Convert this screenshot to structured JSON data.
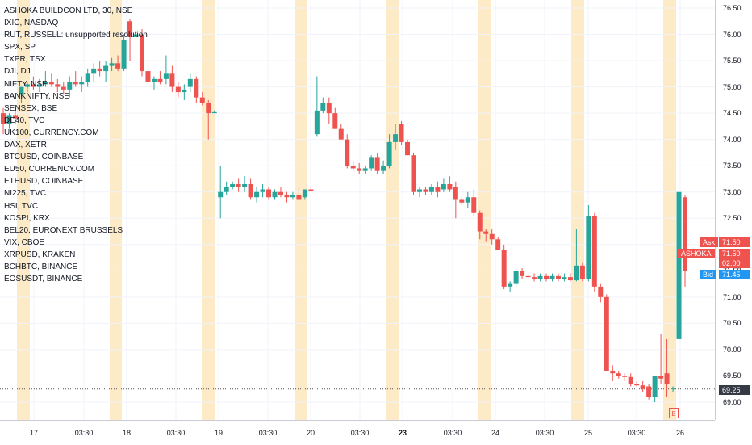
{
  "chart_data": {
    "type": "candlestick",
    "title": "ASHOKA BUILDCON LTD, 30, NSE",
    "ylim": [
      68.8,
      76.75
    ],
    "yticks": [
      69.0,
      69.5,
      70.0,
      70.5,
      71.0,
      71.5,
      72.0,
      72.5,
      73.0,
      73.5,
      74.0,
      74.5,
      75.0,
      75.5,
      76.0,
      76.5
    ],
    "x_ticks": [
      "17",
      "03:30",
      "18",
      "03:30",
      "19",
      "03:30",
      "20",
      "03:30",
      "23",
      "03:30",
      "24",
      "03:30",
      "25",
      "03:30",
      "26"
    ],
    "x_tick_bold": [
      "23"
    ],
    "comparison_symbols": [
      "IXIC, NASDAQ",
      "RUT, RUSSELL: unsupported resolution",
      "SPX, SP",
      "TXPR, TSX",
      "DJI, DJ",
      "NIFTY, NSE",
      "BANKNIFTY, NSE",
      "SENSEX, BSE",
      "DE40, TVC",
      "UK100, CURRENCY.COM",
      "DAX, XETR",
      "BTCUSD, COINBASE",
      "EU50, CURRENCY.COM",
      "ETHUSD, COINBASE",
      "NI225, TVC",
      "HSI, TVC",
      "KOSPI, KRX",
      "BEL20, EURONEXT BRUSSELS",
      "VIX, CBOE",
      "XRPUSD, KRAKEN",
      "BCHBTC, BINANCE",
      "EOSUSDT, BINANCE"
    ],
    "candles": [
      [
        74.5,
        74.6,
        74.1,
        74.3
      ],
      [
        74.3,
        74.5,
        74.2,
        74.45
      ],
      [
        74.45,
        74.6,
        74.3,
        74.4
      ],
      [
        74.85,
        75.0,
        74.7,
        75.0
      ],
      [
        75.0,
        75.1,
        74.9,
        75.05
      ],
      [
        75.05,
        75.2,
        74.95,
        75.0
      ],
      [
        75.0,
        75.15,
        74.9,
        75.05
      ],
      [
        75.05,
        75.3,
        75.0,
        75.1
      ],
      [
        75.1,
        75.25,
        75.0,
        75.05
      ],
      [
        75.05,
        75.15,
        74.9,
        75.0
      ],
      [
        75.0,
        75.1,
        74.85,
        74.95
      ],
      [
        74.95,
        75.2,
        74.8,
        75.1
      ],
      [
        75.1,
        75.3,
        75.0,
        75.05
      ],
      [
        75.05,
        75.2,
        74.9,
        75.1
      ],
      [
        75.1,
        75.35,
        75.0,
        75.25
      ],
      [
        75.25,
        75.45,
        75.1,
        75.35
      ],
      [
        75.35,
        75.5,
        75.2,
        75.3
      ],
      [
        75.3,
        75.5,
        75.1,
        75.4
      ],
      [
        75.4,
        75.55,
        75.3,
        75.45
      ],
      [
        75.45,
        75.6,
        75.3,
        75.35
      ],
      [
        75.35,
        76.0,
        75.3,
        75.9
      ],
      [
        76.25,
        76.3,
        75.5,
        75.95
      ],
      [
        75.95,
        76.15,
        75.9,
        76.0
      ],
      [
        76.0,
        76.1,
        75.2,
        75.3
      ],
      [
        75.3,
        75.5,
        75.0,
        75.1
      ],
      [
        75.1,
        75.2,
        74.95,
        75.15
      ],
      [
        75.15,
        75.3,
        75.05,
        75.1
      ],
      [
        75.15,
        75.6,
        75.05,
        75.25
      ],
      [
        75.25,
        75.4,
        74.9,
        75.0
      ],
      [
        75.0,
        75.1,
        74.8,
        74.9
      ],
      [
        74.9,
        75.05,
        74.75,
        74.95
      ],
      [
        75.0,
        75.25,
        74.9,
        75.15
      ],
      [
        75.15,
        75.2,
        74.7,
        74.8
      ],
      [
        74.8,
        74.9,
        74.65,
        74.7
      ],
      [
        74.7,
        74.75,
        74.0,
        74.5
      ],
      [
        74.5,
        74.55,
        74.5,
        74.52
      ],
      [
        72.9,
        73.5,
        72.5,
        73.0
      ],
      [
        73.0,
        73.2,
        72.95,
        73.1
      ],
      [
        73.1,
        73.2,
        73.05,
        73.15
      ],
      [
        73.15,
        73.25,
        73.0,
        73.1
      ],
      [
        73.1,
        73.3,
        73.0,
        73.15
      ],
      [
        73.15,
        73.25,
        72.85,
        72.9
      ],
      [
        72.9,
        73.1,
        72.8,
        73.0
      ],
      [
        73.0,
        73.15,
        72.9,
        73.05
      ],
      [
        73.05,
        73.1,
        72.85,
        72.9
      ],
      [
        72.9,
        73.05,
        72.85,
        73.0
      ],
      [
        73.0,
        73.1,
        72.9,
        72.95
      ],
      [
        72.95,
        73.0,
        72.8,
        72.9
      ],
      [
        72.9,
        73.0,
        72.85,
        72.95
      ],
      [
        72.95,
        73.1,
        72.85,
        72.85
      ],
      [
        72.9,
        73.05,
        72.85,
        73.05
      ],
      [
        73.05,
        73.1,
        73.0,
        73.02
      ],
      [
        74.1,
        75.2,
        74.05,
        74.55
      ],
      [
        74.55,
        74.8,
        74.5,
        74.7
      ],
      [
        74.7,
        74.8,
        74.3,
        74.5
      ],
      [
        74.5,
        74.6,
        74.2,
        74.2
      ],
      [
        74.2,
        74.3,
        74.0,
        74.0
      ],
      [
        74.0,
        74.1,
        73.45,
        73.5
      ],
      [
        73.5,
        73.6,
        73.4,
        73.45
      ],
      [
        73.45,
        73.55,
        73.35,
        73.4
      ],
      [
        73.4,
        73.5,
        73.35,
        73.45
      ],
      [
        73.45,
        73.7,
        73.4,
        73.65
      ],
      [
        73.65,
        73.75,
        73.35,
        73.4
      ],
      [
        73.4,
        73.6,
        73.35,
        73.5
      ],
      [
        73.5,
        74.1,
        73.45,
        73.95
      ],
      [
        73.95,
        74.3,
        73.8,
        74.1
      ],
      [
        74.3,
        74.35,
        73.9,
        73.95
      ],
      [
        73.95,
        74.0,
        73.7,
        73.7
      ],
      [
        73.7,
        73.75,
        72.95,
        73.0
      ],
      [
        73.0,
        73.1,
        72.9,
        73.05
      ],
      [
        73.05,
        73.1,
        72.95,
        73.0
      ],
      [
        73.0,
        73.15,
        72.95,
        73.1
      ],
      [
        73.1,
        73.2,
        72.9,
        73.0
      ],
      [
        73.05,
        73.25,
        73.0,
        73.15
      ],
      [
        73.15,
        73.3,
        73.0,
        73.05
      ],
      [
        73.1,
        73.2,
        72.5,
        72.85
      ],
      [
        72.85,
        72.9,
        72.75,
        72.8
      ],
      [
        72.8,
        73.0,
        72.7,
        72.9
      ],
      [
        72.9,
        73.05,
        72.55,
        72.6
      ],
      [
        72.6,
        72.65,
        72.1,
        72.25
      ],
      [
        72.25,
        72.3,
        72.05,
        72.2
      ],
      [
        72.2,
        72.3,
        72.0,
        72.1
      ],
      [
        72.1,
        72.15,
        71.9,
        71.9
      ],
      [
        71.9,
        72.0,
        71.15,
        71.2
      ],
      [
        71.2,
        71.3,
        71.1,
        71.25
      ],
      [
        71.25,
        71.55,
        71.2,
        71.5
      ],
      [
        71.5,
        71.55,
        71.35,
        71.4
      ],
      [
        71.4,
        71.45,
        71.35,
        71.38
      ],
      [
        71.38,
        71.45,
        71.3,
        71.35
      ],
      [
        71.35,
        71.45,
        71.3,
        71.4
      ],
      [
        71.4,
        71.45,
        71.3,
        71.35
      ],
      [
        71.35,
        71.45,
        71.3,
        71.4
      ],
      [
        71.4,
        71.45,
        71.3,
        71.35
      ],
      [
        71.35,
        71.45,
        71.3,
        71.38
      ],
      [
        71.38,
        71.45,
        71.3,
        71.32
      ],
      [
        71.32,
        72.3,
        71.3,
        71.6
      ],
      [
        71.6,
        71.65,
        71.3,
        71.35
      ],
      [
        71.35,
        72.75,
        71.3,
        72.55
      ],
      [
        72.55,
        72.6,
        71.1,
        71.2
      ],
      [
        71.2,
        71.25,
        70.9,
        71.0
      ],
      [
        71.0,
        71.05,
        69.6,
        69.6
      ],
      [
        69.6,
        69.7,
        69.4,
        69.55
      ],
      [
        69.55,
        69.6,
        69.45,
        69.5
      ],
      [
        69.5,
        69.55,
        69.4,
        69.48
      ],
      [
        69.48,
        69.55,
        69.3,
        69.35
      ],
      [
        69.35,
        69.4,
        69.3,
        69.32
      ],
      [
        69.32,
        69.4,
        69.2,
        69.25
      ],
      [
        69.3,
        69.35,
        69.05,
        69.1
      ],
      [
        69.1,
        69.5,
        69.0,
        69.5
      ],
      [
        69.5,
        70.3,
        69.35,
        69.45
      ],
      [
        69.55,
        70.2,
        69.1,
        69.35
      ],
      [
        69.25,
        69.3,
        69.2,
        69.26
      ],
      [
        70.2,
        73.0,
        70.2,
        73.0
      ],
      [
        72.9,
        72.95,
        71.2,
        71.5
      ]
    ],
    "session_highlights": [
      "17",
      "18",
      "19",
      "20",
      "23",
      "24",
      "25",
      "26"
    ],
    "price_tags": {
      "ask_label": "Ask",
      "ask_price": "71.50",
      "symbol_label": "ASHOKA",
      "last_price": "71.50",
      "countdown": "02:00",
      "bid_label": "Bid",
      "bid_price": "71.45",
      "low_line_price": "69.25"
    },
    "earnings_marker": "E",
    "colors": {
      "up": "#26a69a",
      "down": "#ef5350",
      "session": "#fdebc8",
      "grid": "#f0f3fa",
      "bid": "#2196f3",
      "dotted_line": "#ef5350"
    }
  }
}
